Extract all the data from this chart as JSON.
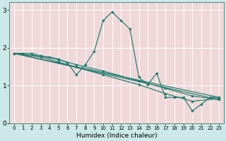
{
  "xlabel": "Humidex (Indice chaleur)",
  "bg_color": "#cce8e8",
  "grid_color": "#f0d8d8",
  "line_color": "#1a7a6e",
  "xlim": [
    -0.5,
    23.5
  ],
  "ylim": [
    0,
    3.2
  ],
  "yticks": [
    0,
    1,
    2,
    3
  ],
  "xticks": [
    0,
    1,
    2,
    3,
    4,
    5,
    6,
    7,
    8,
    9,
    10,
    11,
    12,
    13,
    14,
    15,
    16,
    17,
    18,
    19,
    20,
    21,
    22,
    23
  ],
  "series1": [
    [
      0,
      1.85
    ],
    [
      1,
      1.85
    ],
    [
      2,
      1.85
    ],
    [
      3,
      1.78
    ],
    [
      4,
      1.75
    ],
    [
      5,
      1.7
    ],
    [
      6,
      1.6
    ],
    [
      7,
      1.28
    ],
    [
      8,
      1.55
    ],
    [
      9,
      1.9
    ],
    [
      10,
      2.72
    ],
    [
      11,
      2.95
    ],
    [
      12,
      2.72
    ],
    [
      13,
      2.5
    ],
    [
      14,
      1.22
    ],
    [
      15,
      1.02
    ],
    [
      16,
      1.32
    ],
    [
      17,
      0.68
    ],
    [
      18,
      0.68
    ],
    [
      19,
      0.68
    ],
    [
      20,
      0.32
    ],
    [
      21,
      0.5
    ],
    [
      22,
      0.68
    ],
    [
      23,
      0.68
    ]
  ],
  "series2": [
    [
      0,
      1.85
    ],
    [
      3,
      1.78
    ],
    [
      5,
      1.68
    ],
    [
      7,
      1.55
    ],
    [
      10,
      1.38
    ],
    [
      14,
      1.12
    ],
    [
      17,
      0.92
    ],
    [
      20,
      0.72
    ],
    [
      23,
      0.62
    ]
  ],
  "series3": [
    [
      0,
      1.85
    ],
    [
      3,
      1.75
    ],
    [
      5,
      1.62
    ],
    [
      7,
      1.48
    ],
    [
      10,
      1.28
    ],
    [
      14,
      1.02
    ],
    [
      17,
      0.78
    ],
    [
      20,
      0.58
    ],
    [
      23,
      0.65
    ]
  ],
  "series4": [
    [
      0,
      1.85
    ],
    [
      23,
      0.62
    ]
  ],
  "series5": [
    [
      0,
      1.85
    ],
    [
      23,
      0.68
    ]
  ]
}
